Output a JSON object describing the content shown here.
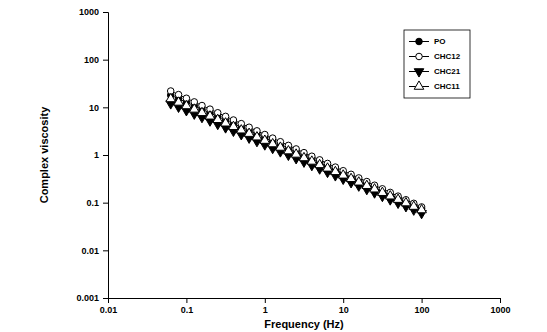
{
  "chart_data": {
    "type": "line",
    "x_label": "Frequency (Hz)",
    "y_label": "Complex viscosity",
    "log": true,
    "legend": "top-right",
    "line_style": "solid",
    "xlim": [
      0.01,
      1000
    ],
    "ylim": [
      0.001,
      1000
    ],
    "xticks": [
      0.01,
      0.1,
      1,
      10,
      100,
      1000
    ],
    "yticks": [
      0.001,
      0.01,
      0.1,
      1,
      10,
      100,
      1000
    ],
    "x": [
      0.0631,
      0.0794,
      0.1,
      0.126,
      0.158,
      0.2,
      0.251,
      0.316,
      0.398,
      0.501,
      0.631,
      0.794,
      1,
      1.26,
      1.58,
      2,
      2.51,
      3.16,
      3.98,
      5.01,
      6.31,
      7.94,
      10,
      12.6,
      15.8,
      20,
      25.1,
      31.6,
      39.8,
      50.1,
      63.1,
      79.4,
      100
    ],
    "series": [
      {
        "name": "PO",
        "color": "#000000",
        "marker": "circle",
        "values": [
          18.0,
          15.2,
          12.8,
          10.8,
          9.06,
          7.63,
          6.43,
          5.41,
          4.56,
          3.84,
          3.24,
          2.73,
          2.3,
          1.93,
          1.63,
          1.37,
          1.16,
          0.974,
          0.82,
          0.691,
          0.582,
          0.49,
          0.413,
          0.348,
          0.293,
          0.247,
          0.208,
          0.175,
          0.148,
          0.124,
          0.105,
          0.0882,
          0.0743
        ]
      },
      {
        "name": "CHC12",
        "color": "#000000",
        "marker": "circle-open",
        "values": [
          22.0,
          18.5,
          15.5,
          13.0,
          10.9,
          9.16,
          7.69,
          6.46,
          5.42,
          4.55,
          3.82,
          3.21,
          2.69,
          2.26,
          1.9,
          1.59,
          1.34,
          1.12,
          0.942,
          0.791,
          0.664,
          0.557,
          0.468,
          0.393,
          0.33,
          0.277,
          0.232,
          0.195,
          0.164,
          0.137,
          0.115,
          0.0968,
          0.0813
        ]
      },
      {
        "name": "CHC21",
        "color": "#000000",
        "marker": "triangle-down",
        "values": [
          12.0,
          10.2,
          8.61,
          7.3,
          6.19,
          5.24,
          4.44,
          3.76,
          3.19,
          2.7,
          2.29,
          1.94,
          1.65,
          1.39,
          1.18,
          1.0,
          0.848,
          0.719,
          0.609,
          0.516,
          0.438,
          0.371,
          0.314,
          0.266,
          0.226,
          0.191,
          0.162,
          0.137,
          0.116,
          0.0986,
          0.0836,
          0.0708,
          0.06
        ]
      },
      {
        "name": "CHC11",
        "color": "#000000",
        "marker": "triangle-up-open",
        "values": [
          15.0,
          12.7,
          10.7,
          9.07,
          7.67,
          6.49,
          5.49,
          4.64,
          3.92,
          3.32,
          2.81,
          2.37,
          2.01,
          1.7,
          1.44,
          1.21,
          1.03,
          0.868,
          0.734,
          0.621,
          0.525,
          0.444,
          0.375,
          0.317,
          0.268,
          0.227,
          0.192,
          0.162,
          0.137,
          0.116,
          0.0982,
          0.083,
          0.0702
        ]
      }
    ]
  }
}
